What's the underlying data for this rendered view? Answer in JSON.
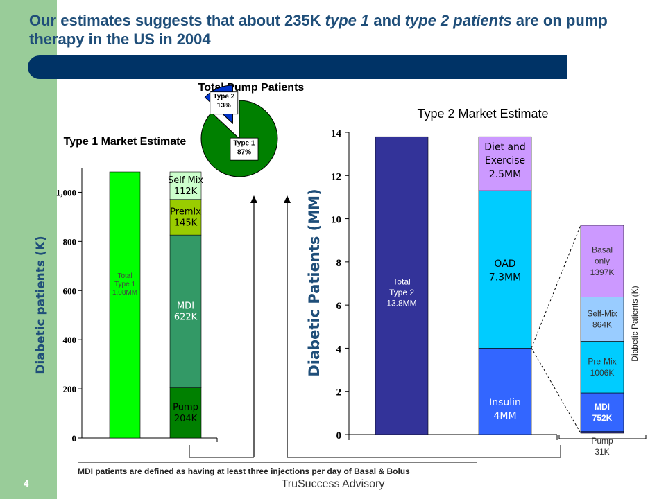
{
  "slide": {
    "title_part1": "Our estimates suggests that about 235K ",
    "title_em1": "type 1",
    "title_part2": " and ",
    "title_em2": "type 2 patients",
    "title_part3": " are on pump therapy in the US in 2004",
    "footnote": "MDI patients are defined as having at least three injections per day of Basal & Bolus",
    "footer": "TruSuccess Advisory",
    "page_number": "4"
  },
  "colors": {
    "sidebar": "#99cc99",
    "banner": "#003366",
    "title": "#1f4e79",
    "bright_green": "#00ff00",
    "pale_green": "#ccffcc",
    "olive_green": "#99cc00",
    "mid_green": "#339966",
    "dark_green": "#008000",
    "navy": "#333399",
    "lavender": "#cc99ff",
    "light_blue": "#00ccff",
    "blue": "#3366ff",
    "pale_blue": "#99ccff",
    "pie_blue": "#0033cc"
  },
  "chart_data": [
    {
      "type": "bar",
      "title": "Type 1 Market Estimate",
      "ylabel": "Diabetic patients (K)",
      "ylim": [
        0,
        1100
      ],
      "yticks": [
        0,
        200,
        400,
        600,
        800,
        1000
      ],
      "ytick_labels": [
        "0",
        "200",
        "400",
        "600",
        "800",
        "1,000"
      ],
      "grid": false,
      "bars": [
        {
          "label": "Total\nType 1\n1.08MM",
          "segments": [
            {
              "value": 1083,
              "label": "",
              "color": "#00ff00"
            }
          ]
        },
        {
          "segments": [
            {
              "value": 204,
              "label": "Pump\n204K",
              "color": "#008000"
            },
            {
              "value": 622,
              "label": "MDI\n622K",
              "color": "#339966"
            },
            {
              "value": 145,
              "label": "Premix\n145K",
              "color": "#99cc00"
            },
            {
              "value": 112,
              "label": "Self Mix\n112K",
              "color": "#ccffcc"
            }
          ]
        }
      ]
    },
    {
      "type": "pie",
      "title": "Total Pump Patients",
      "slices": [
        {
          "label": "Type 1\n87%",
          "value": 87,
          "color": "#008000"
        },
        {
          "label": "Type 2\n13%",
          "value": 13,
          "color": "#0033cc"
        }
      ]
    },
    {
      "type": "bar",
      "title": "Type 2 Market Estimate",
      "ylabel": "Diabetic Patients (MM)",
      "ylim": [
        0,
        14
      ],
      "yticks": [
        0,
        2,
        4,
        6,
        8,
        10,
        12,
        14
      ],
      "ytick_labels": [
        "0",
        "2",
        "4",
        "6",
        "8",
        "10",
        "12",
        "14"
      ],
      "grid": false,
      "bars": [
        {
          "label": "Total\nType 2\n13.8MM",
          "segments": [
            {
              "value": 13.8,
              "label": "",
              "color": "#333399"
            }
          ]
        },
        {
          "segments": [
            {
              "value": 4.0,
              "label": "Insulin\n4MM",
              "color": "#3366ff"
            },
            {
              "value": 7.3,
              "label": "OAD\n7.3MM",
              "color": "#00ccff"
            },
            {
              "value": 2.5,
              "label": "Diet and\nExercise\n2.5MM",
              "color": "#cc99ff"
            }
          ]
        }
      ]
    },
    {
      "type": "bar",
      "title": "",
      "ylabel": "Diabetic Patients (K)",
      "bars": [
        {
          "segments": [
            {
              "value": 31,
              "label": "Pump\n31K",
              "color": "#333399"
            },
            {
              "value": 752,
              "label": "MDI\n752K",
              "color": "#3366ff"
            },
            {
              "value": 1006,
              "label": "Pre-Mix\n1006K",
              "color": "#00ccff"
            },
            {
              "value": 864,
              "label": "Self-Mix\n864K",
              "color": "#99ccff"
            },
            {
              "value": 1397,
              "label": "Basal\nonly\n1397K",
              "color": "#cc99ff"
            }
          ]
        }
      ]
    }
  ]
}
